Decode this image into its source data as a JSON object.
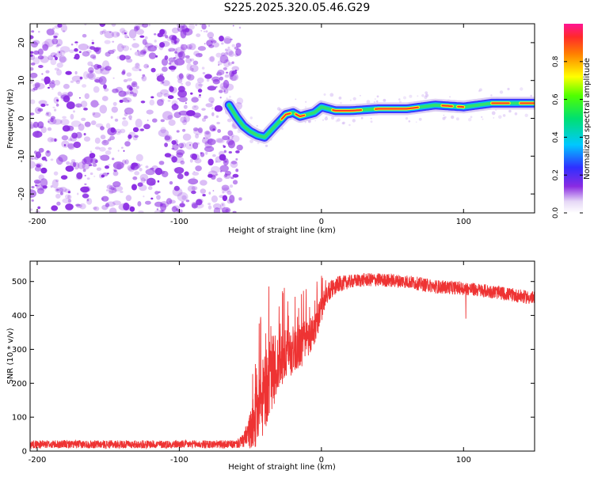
{
  "title": "S225.2025.320.05.46.G29",
  "colors": {
    "snr_line": "#ee3333",
    "signal": "#00bfff",
    "noise": "#8a2be2"
  },
  "chart_data": [
    {
      "type": "heatmap",
      "name": "spectrogram",
      "xlabel": "Height of straight line (km)",
      "ylabel": "Frequency (Hz)",
      "xlim": [
        -205,
        150
      ],
      "ylim": [
        -25,
        25
      ],
      "xticks": [
        -200,
        -100,
        0,
        100
      ],
      "yticks": [
        -20,
        -10,
        0,
        10,
        20
      ],
      "colorbar": {
        "label": "Normalized spectral amplitude",
        "range": [
          0,
          1
        ],
        "ticks": [
          "0.0",
          "0.2",
          "0.4",
          "0.6",
          "0.8"
        ],
        "tick_values": [
          0.0,
          0.2,
          0.4,
          0.6,
          0.8
        ]
      },
      "noise_region_x": [
        -205,
        -65
      ],
      "signal_track": {
        "x": [
          -65,
          -60,
          -55,
          -50,
          -45,
          -40,
          -35,
          -30,
          -25,
          -20,
          -15,
          -10,
          -5,
          0,
          10,
          20,
          40,
          60,
          80,
          100,
          120,
          150
        ],
        "y": [
          3.5,
          0.5,
          -2,
          -3.5,
          -4.5,
          -5,
          -3,
          -1,
          1,
          1.5,
          0.5,
          1,
          1.5,
          3,
          2,
          2,
          2.5,
          2.5,
          3.5,
          3,
          4,
          4
        ]
      }
    },
    {
      "type": "line",
      "name": "snr",
      "xlabel": "Height of straight line (km)",
      "ylabel": "SNR (10 * v/v)",
      "xlim": [
        -205,
        150
      ],
      "ylim": [
        0,
        560
      ],
      "xticks": [
        -200,
        -100,
        0,
        100
      ],
      "yticks": [
        0,
        100,
        200,
        300,
        400,
        500
      ],
      "envelope": {
        "x": [
          -205,
          -100,
          -60,
          -55,
          -50,
          -45,
          -40,
          -35,
          -30,
          -25,
          -20,
          -15,
          -10,
          -5,
          0,
          5,
          10,
          20,
          30,
          40,
          60,
          80,
          100,
          120,
          150
        ],
        "mean": [
          20,
          20,
          20,
          30,
          60,
          110,
          170,
          230,
          260,
          280,
          300,
          310,
          330,
          360,
          420,
          470,
          490,
          500,
          505,
          505,
          500,
          485,
          480,
          470,
          450
        ],
        "spread": [
          12,
          12,
          12,
          20,
          60,
          100,
          120,
          110,
          90,
          80,
          70,
          70,
          60,
          50,
          40,
          30,
          25,
          20,
          20,
          20,
          20,
          20,
          20,
          20,
          20
        ]
      }
    }
  ]
}
